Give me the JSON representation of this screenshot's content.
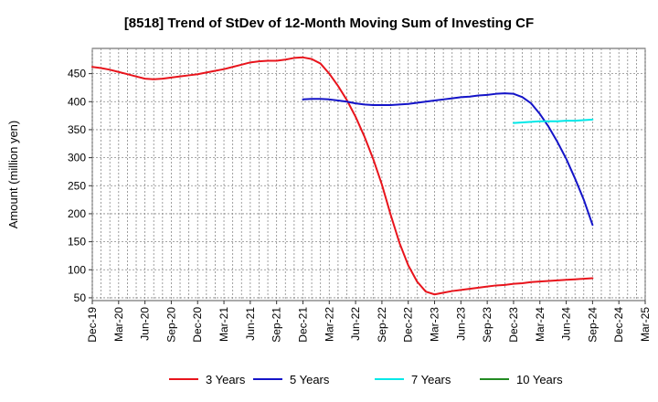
{
  "chart_data": {
    "type": "line",
    "title": "[8518]  Trend of StDev of 12-Month Moving Sum of Investing CF",
    "ylabel": "Amount (million yen)",
    "xlabel": "",
    "ylim": [
      45,
      495
    ],
    "yticks": [
      50,
      100,
      150,
      200,
      250,
      300,
      350,
      400,
      450
    ],
    "x_ticks": [
      "Dec-19",
      "Mar-20",
      "Jun-20",
      "Sep-20",
      "Dec-20",
      "Mar-21",
      "Jun-21",
      "Sep-21",
      "Dec-21",
      "Mar-22",
      "Jun-22",
      "Sep-22",
      "Dec-22",
      "Mar-23",
      "Jun-23",
      "Sep-23",
      "Dec-23",
      "Mar-24",
      "Jun-24",
      "Sep-24",
      "Dec-24",
      "Mar-25"
    ],
    "grid": true,
    "legend_position": "bottom",
    "series": [
      {
        "name": "3 Years",
        "color": "#e8141c",
        "points": [
          [
            "Dec-19",
            462
          ],
          [
            "Jan-20",
            460
          ],
          [
            "Feb-20",
            457
          ],
          [
            "Mar-20",
            453
          ],
          [
            "Apr-20",
            449
          ],
          [
            "May-20",
            445
          ],
          [
            "Jun-20",
            441
          ],
          [
            "Jul-20",
            440
          ],
          [
            "Aug-20",
            441
          ],
          [
            "Sep-20",
            443
          ],
          [
            "Oct-20",
            445
          ],
          [
            "Nov-20",
            447
          ],
          [
            "Dec-20",
            449
          ],
          [
            "Jan-21",
            452
          ],
          [
            "Feb-21",
            455
          ],
          [
            "Mar-21",
            458
          ],
          [
            "Apr-21",
            462
          ],
          [
            "May-21",
            466
          ],
          [
            "Jun-21",
            470
          ],
          [
            "Jul-21",
            472
          ],
          [
            "Aug-21",
            473
          ],
          [
            "Sep-21",
            473
          ],
          [
            "Oct-21",
            475
          ],
          [
            "Nov-21",
            478
          ],
          [
            "Dec-21",
            479
          ],
          [
            "Jan-22",
            476
          ],
          [
            "Feb-22",
            468
          ],
          [
            "Mar-22",
            450
          ],
          [
            "Apr-22",
            428
          ],
          [
            "May-22",
            403
          ],
          [
            "Jun-22",
            373
          ],
          [
            "Jul-22",
            338
          ],
          [
            "Aug-22",
            298
          ],
          [
            "Sep-22",
            252
          ],
          [
            "Oct-22",
            198
          ],
          [
            "Nov-22",
            148
          ],
          [
            "Dec-22",
            108
          ],
          [
            "Jan-23",
            79
          ],
          [
            "Feb-23",
            61
          ],
          [
            "Mar-23",
            56
          ],
          [
            "Apr-23",
            59
          ],
          [
            "May-23",
            62
          ],
          [
            "Jun-23",
            64
          ],
          [
            "Jul-23",
            66
          ],
          [
            "Aug-23",
            68
          ],
          [
            "Sep-23",
            70
          ],
          [
            "Oct-23",
            72
          ],
          [
            "Nov-23",
            73
          ],
          [
            "Dec-23",
            75
          ],
          [
            "Jan-24",
            76
          ],
          [
            "Feb-24",
            78
          ],
          [
            "Mar-24",
            79
          ],
          [
            "Apr-24",
            80
          ],
          [
            "May-24",
            81
          ],
          [
            "Jun-24",
            82
          ],
          [
            "Jul-24",
            83
          ],
          [
            "Aug-24",
            84
          ],
          [
            "Sep-24",
            85
          ]
        ]
      },
      {
        "name": "5 Years",
        "color": "#1414c8",
        "points": [
          [
            "Dec-21",
            404
          ],
          [
            "Jan-22",
            405
          ],
          [
            "Feb-22",
            405
          ],
          [
            "Mar-22",
            404
          ],
          [
            "Apr-22",
            402
          ],
          [
            "May-22",
            400
          ],
          [
            "Jun-22",
            397
          ],
          [
            "Jul-22",
            395
          ],
          [
            "Aug-22",
            394
          ],
          [
            "Sep-22",
            394
          ],
          [
            "Oct-22",
            394
          ],
          [
            "Nov-22",
            395
          ],
          [
            "Dec-22",
            396
          ],
          [
            "Jan-23",
            398
          ],
          [
            "Feb-23",
            400
          ],
          [
            "Mar-23",
            402
          ],
          [
            "Apr-23",
            404
          ],
          [
            "May-23",
            406
          ],
          [
            "Jun-23",
            408
          ],
          [
            "Jul-23",
            409
          ],
          [
            "Aug-23",
            411
          ],
          [
            "Sep-23",
            412
          ],
          [
            "Oct-23",
            414
          ],
          [
            "Nov-23",
            415
          ],
          [
            "Dec-23",
            414
          ],
          [
            "Jan-24",
            408
          ],
          [
            "Feb-24",
            397
          ],
          [
            "Mar-24",
            378
          ],
          [
            "Apr-24",
            355
          ],
          [
            "May-24",
            328
          ],
          [
            "Jun-24",
            298
          ],
          [
            "Jul-24",
            263
          ],
          [
            "Aug-24",
            225
          ],
          [
            "Sep-24",
            180
          ]
        ]
      },
      {
        "name": "7 Years",
        "color": "#00e8e8",
        "points": [
          [
            "Dec-23",
            362
          ],
          [
            "Jan-24",
            363
          ],
          [
            "Feb-24",
            364
          ],
          [
            "Mar-24",
            365
          ],
          [
            "Apr-24",
            365
          ],
          [
            "May-24",
            365
          ],
          [
            "Jun-24",
            366
          ],
          [
            "Jul-24",
            366
          ],
          [
            "Aug-24",
            367
          ],
          [
            "Sep-24",
            368
          ]
        ]
      },
      {
        "name": "10 Years",
        "color": "#228b22",
        "points": []
      }
    ]
  }
}
